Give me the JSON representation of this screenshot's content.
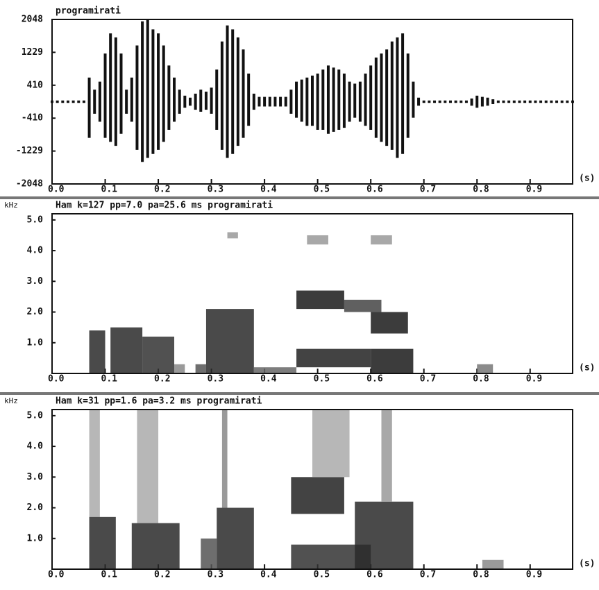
{
  "chart_data": [
    {
      "type": "waveform",
      "title": "programirati",
      "xlabel": "(s)",
      "x": [
        0,
        0.01,
        0.02,
        0.03,
        0.04,
        0.05,
        0.06,
        0.07,
        0.08,
        0.09,
        0.1,
        0.11,
        0.12,
        0.13,
        0.14,
        0.15,
        0.16,
        0.17,
        0.18,
        0.19,
        0.2,
        0.21,
        0.22,
        0.23,
        0.24,
        0.25,
        0.26,
        0.27,
        0.28,
        0.29,
        0.3,
        0.31,
        0.32,
        0.33,
        0.34,
        0.35,
        0.36,
        0.37,
        0.38,
        0.39,
        0.4,
        0.41,
        0.42,
        0.43,
        0.44,
        0.45,
        0.46,
        0.47,
        0.48,
        0.49,
        0.5,
        0.51,
        0.52,
        0.53,
        0.54,
        0.55,
        0.56,
        0.57,
        0.58,
        0.59,
        0.6,
        0.61,
        0.62,
        0.63,
        0.64,
        0.65,
        0.66,
        0.67,
        0.68,
        0.69,
        0.7,
        0.71,
        0.72,
        0.73,
        0.74,
        0.75,
        0.76,
        0.77,
        0.78,
        0.79,
        0.8,
        0.81,
        0.82,
        0.83,
        0.84,
        0.85,
        0.86,
        0.87,
        0.88,
        0.89,
        0.9,
        0.91,
        0.92,
        0.93,
        0.94,
        0.95,
        0.96,
        0.97,
        0.98
      ],
      "series": [
        {
          "color": "#111111",
          "values": [
            30,
            30,
            30,
            30,
            30,
            30,
            30,
            600,
            300,
            500,
            1200,
            1700,
            1600,
            1200,
            300,
            600,
            1400,
            2000,
            2048,
            1800,
            1700,
            1400,
            900,
            600,
            300,
            150,
            100,
            200,
            300,
            250,
            350,
            800,
            1500,
            1900,
            1800,
            1600,
            1300,
            700,
            200,
            120,
            120,
            120,
            120,
            120,
            120,
            300,
            500,
            550,
            600,
            650,
            700,
            800,
            900,
            850,
            800,
            700,
            500,
            450,
            500,
            700,
            900,
            1100,
            1200,
            1300,
            1500,
            1600,
            1700,
            1200,
            500,
            100,
            30,
            30,
            30,
            30,
            30,
            30,
            30,
            30,
            30,
            80,
            150,
            120,
            100,
            60,
            30,
            30,
            30,
            30,
            30,
            30,
            30,
            30,
            30,
            30,
            30,
            30,
            30,
            30,
            30
          ]
        },
        {
          "color": "#111111",
          "values": [
            -30,
            -30,
            -30,
            -30,
            -30,
            -30,
            -30,
            -900,
            -300,
            -500,
            -900,
            -1000,
            -1100,
            -800,
            -300,
            -500,
            -1200,
            -1500,
            -1400,
            -1300,
            -1200,
            -1000,
            -700,
            -500,
            -300,
            -150,
            -100,
            -200,
            -250,
            -200,
            -300,
            -700,
            -1200,
            -1400,
            -1300,
            -1100,
            -900,
            -600,
            -200,
            -120,
            -120,
            -120,
            -120,
            -120,
            -120,
            -300,
            -400,
            -500,
            -600,
            -600,
            -700,
            -700,
            -800,
            -750,
            -700,
            -650,
            -500,
            -400,
            -500,
            -600,
            -700,
            -900,
            -1000,
            -1100,
            -1200,
            -1400,
            -1300,
            -900,
            -400,
            -100,
            -30,
            -30,
            -30,
            -30,
            -30,
            -30,
            -30,
            -30,
            -30,
            -100,
            -150,
            -120,
            -100,
            -60,
            -30,
            -30,
            -30,
            -30,
            -30,
            -30,
            -30,
            -30,
            -30,
            -30,
            -30,
            -30,
            -30,
            -30,
            -30
          ]
        }
      ],
      "xlim": [
        0,
        0.98
      ],
      "ylim": [
        -2048,
        2048
      ],
      "xticks": [
        {
          "value": 0,
          "label": "0.0"
        },
        0.1,
        0.2,
        0.3,
        0.4,
        0.5,
        0.6,
        0.7,
        0.8,
        0.9
      ],
      "yticks": [
        2048,
        1229,
        410,
        -410,
        -1229,
        -2048
      ]
    },
    {
      "type": "spectrogram",
      "title": "Ham k=127 pp=7.0 pa=25.6 ms programirati",
      "ylabel": "kHz",
      "xlabel": "(s)",
      "regions": [
        {
          "x": [
            0.07,
            0.1
          ],
          "y": [
            0,
            1.4
          ],
          "color": "#2a2a2a"
        },
        {
          "x": [
            0.11,
            0.17
          ],
          "y": [
            0,
            1.5
          ],
          "color": "#2a2a2a"
        },
        {
          "x": [
            0.17,
            0.23
          ],
          "y": [
            0,
            1.2
          ],
          "color": "#333333"
        },
        {
          "x": [
            0.23,
            0.25
          ],
          "y": [
            0,
            0.3
          ],
          "color": "#888888"
        },
        {
          "x": [
            0.27,
            0.29
          ],
          "y": [
            0,
            0.3
          ],
          "color": "#555555"
        },
        {
          "x": [
            0.29,
            0.38
          ],
          "y": [
            0,
            2.1
          ],
          "color": "#2a2a2a"
        },
        {
          "x": [
            0.38,
            0.46
          ],
          "y": [
            0,
            0.2
          ],
          "color": "#666666"
        },
        {
          "x": [
            0.46,
            0.55
          ],
          "y": [
            2.1,
            2.7
          ],
          "color": "#1a1a1a"
        },
        {
          "x": [
            0.46,
            0.6
          ],
          "y": [
            0.2,
            0.8
          ],
          "color": "#222222"
        },
        {
          "x": [
            0.55,
            0.62
          ],
          "y": [
            2,
            2.4
          ],
          "color": "#444444"
        },
        {
          "x": [
            0.6,
            0.67
          ],
          "y": [
            1.3,
            2
          ],
          "color": "#1a1a1a"
        },
        {
          "x": [
            0.6,
            0.68
          ],
          "y": [
            0,
            0.8
          ],
          "color": "#1a1a1a"
        },
        {
          "x": [
            0.8,
            0.83
          ],
          "y": [
            0,
            0.3
          ],
          "color": "#777777"
        },
        {
          "x": [
            0.33,
            0.35
          ],
          "y": [
            4.4,
            4.6
          ],
          "color": "#999999"
        },
        {
          "x": [
            0.48,
            0.52
          ],
          "y": [
            4.2,
            4.5
          ],
          "color": "#999999"
        },
        {
          "x": [
            0.6,
            0.64
          ],
          "y": [
            4.2,
            4.5
          ],
          "color": "#999999"
        }
      ],
      "xlim": [
        0,
        0.98
      ],
      "ylim": [
        0,
        5.2
      ],
      "xticks": [
        {
          "value": 0,
          "label": "0.0"
        },
        0.1,
        0.2,
        0.3,
        0.4,
        0.5,
        0.6,
        0.7,
        0.8,
        0.9
      ],
      "yticks": [
        {
          "value": 1,
          "label": "1.0"
        },
        {
          "value": 2,
          "label": "2.0"
        },
        {
          "value": 3,
          "label": "3.0"
        },
        {
          "value": 4,
          "label": "4.0"
        },
        {
          "value": 5,
          "label": "5.0"
        }
      ]
    },
    {
      "type": "spectrogram",
      "title": "Ham k=31 pp=1.6  pa=3.2 ms programirati",
      "ylabel": "kHz",
      "xlabel": "(s)",
      "regions": [
        {
          "x": [
            0.07,
            0.09
          ],
          "y": [
            1.7,
            5.2
          ],
          "color": "#aaaaaa"
        },
        {
          "x": [
            0.07,
            0.12
          ],
          "y": [
            0,
            1.7
          ],
          "color": "#2a2a2a"
        },
        {
          "x": [
            0.16,
            0.2
          ],
          "y": [
            1.5,
            5.2
          ],
          "color": "#aaaaaa"
        },
        {
          "x": [
            0.15,
            0.24
          ],
          "y": [
            0,
            1.5
          ],
          "color": "#2a2a2a"
        },
        {
          "x": [
            0.28,
            0.31
          ],
          "y": [
            0,
            1
          ],
          "color": "#555555"
        },
        {
          "x": [
            0.32,
            0.33
          ],
          "y": [
            2,
            5.2
          ],
          "color": "#888888"
        },
        {
          "x": [
            0.31,
            0.38
          ],
          "y": [
            0,
            2
          ],
          "color": "#2a2a2a"
        },
        {
          "x": [
            0.45,
            0.55
          ],
          "y": [
            1.8,
            3
          ],
          "color": "#222222"
        },
        {
          "x": [
            0.45,
            0.6
          ],
          "y": [
            0,
            0.8
          ],
          "color": "#333333"
        },
        {
          "x": [
            0.49,
            0.56
          ],
          "y": [
            3,
            5.2
          ],
          "color": "#aaaaaa"
        },
        {
          "x": [
            0.57,
            0.68
          ],
          "y": [
            0,
            2.2
          ],
          "color": "#2a2a2a"
        },
        {
          "x": [
            0.62,
            0.64
          ],
          "y": [
            2.2,
            5.2
          ],
          "color": "#999999"
        },
        {
          "x": [
            0.81,
            0.85
          ],
          "y": [
            0,
            0.3
          ],
          "color": "#888888"
        }
      ],
      "xlim": [
        0,
        0.98
      ],
      "ylim": [
        0,
        5.2
      ],
      "xticks": [
        {
          "value": 0,
          "label": "0.0"
        },
        0.1,
        0.2,
        0.3,
        0.4,
        0.5,
        0.6,
        0.7,
        0.8,
        0.9
      ],
      "yticks": [
        {
          "value": 1,
          "label": "1.0"
        },
        {
          "value": 2,
          "label": "2.0"
        },
        {
          "value": 3,
          "label": "3.0"
        },
        {
          "value": 4,
          "label": "4.0"
        },
        {
          "value": 5,
          "label": "5.0"
        }
      ]
    }
  ]
}
